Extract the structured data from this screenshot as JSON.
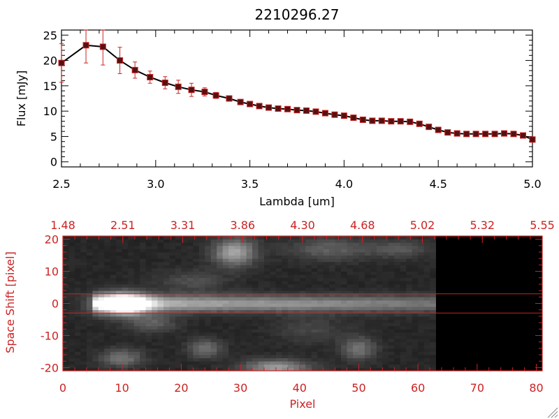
{
  "colors": {
    "axis": "#000000",
    "accent_red": "#cc2222",
    "marker_fill": "#551111",
    "image_background": "#000000"
  },
  "chart_data": [
    {
      "type": "line",
      "title": "2210296.27",
      "xlabel": "Lambda [um]",
      "ylabel": "Flux [mJy]",
      "xlim": [
        2.5,
        5.0
      ],
      "ylim": [
        -1,
        26
      ],
      "x_ticks": [
        "2.5",
        "3.0",
        "3.5",
        "4.0",
        "4.5",
        "5.0"
      ],
      "y_ticks": [
        "0",
        "5",
        "10",
        "15",
        "20",
        "25"
      ],
      "grid": false,
      "series": [
        {
          "x": [
            2.5,
            2.63,
            2.72,
            2.81,
            2.89,
            2.97,
            3.05,
            3.12,
            3.19,
            3.26,
            3.32,
            3.39,
            3.45,
            3.5,
            3.55,
            3.6,
            3.65,
            3.7,
            3.75,
            3.8,
            3.85,
            3.9,
            3.95,
            4.0,
            4.05,
            4.1,
            4.15,
            4.2,
            4.25,
            4.3,
            4.35,
            4.4,
            4.45,
            4.5,
            4.55,
            4.6,
            4.65,
            4.7,
            4.75,
            4.8,
            4.85,
            4.9,
            4.95,
            5.0
          ],
          "y": [
            19.5,
            23.0,
            22.7,
            20.0,
            18.1,
            16.7,
            15.6,
            14.8,
            14.2,
            13.8,
            13.1,
            12.5,
            11.8,
            11.4,
            11.0,
            10.7,
            10.5,
            10.4,
            10.2,
            10.1,
            9.9,
            9.6,
            9.3,
            9.1,
            8.7,
            8.3,
            8.1,
            8.1,
            8.0,
            8.0,
            7.9,
            7.5,
            6.9,
            6.3,
            5.8,
            5.6,
            5.5,
            5.5,
            5.5,
            5.5,
            5.6,
            5.5,
            5.2,
            4.4
          ],
          "yerr": [
            3.8,
            3.5,
            3.6,
            2.6,
            1.6,
            1.2,
            1.2,
            1.3,
            1.3,
            0.8,
            0.6,
            0.4,
            0.3,
            0.3,
            0.3,
            0.3,
            0.3,
            0.3,
            0.3,
            0.3,
            0.3,
            0.3,
            0.3,
            0.3,
            0.3,
            0.3,
            0.3,
            0.3,
            0.3,
            0.3,
            0.3,
            0.3,
            0.3,
            0.3,
            0.3,
            0.3,
            0.3,
            0.3,
            0.3,
            0.3,
            0.3,
            0.3,
            0.3,
            0.3
          ]
        }
      ]
    },
    {
      "type": "heatmap",
      "xlabel": "Pixel",
      "ylabel": "Space Shift [pixel]",
      "xlim": [
        0,
        81
      ],
      "ylim": [
        -21,
        21
      ],
      "x_ticks": [
        "0",
        "10",
        "20",
        "30",
        "40",
        "50",
        "60",
        "70",
        "80"
      ],
      "y_ticks": [
        "-20",
        "-10",
        "0",
        "10",
        "20"
      ],
      "top_axis_ticks": [
        "1.48",
        "2.51",
        "3.31",
        "3.86",
        "4.30",
        "4.68",
        "5.02",
        "5.32",
        "5.55"
      ],
      "extraction_window": [
        -3,
        3
      ],
      "data_extent_pixel": 63,
      "blobs": [
        {
          "x": 10,
          "y": 0,
          "sx": 3.2,
          "sy": 2.3,
          "amp": 0.9
        },
        {
          "x": 11,
          "y": 0,
          "sx": 1.8,
          "sy": 1.6,
          "amp": 0.35
        },
        {
          "x": 29,
          "y": 16,
          "sx": 2.5,
          "sy": 3.0,
          "amp": 0.5
        },
        {
          "x": 45,
          "y": 17,
          "sx": 5.0,
          "sy": 2.5,
          "amp": 0.22
        },
        {
          "x": 57,
          "y": 17,
          "sx": 3.5,
          "sy": 2.0,
          "amp": 0.18
        },
        {
          "x": 36,
          "y": -20,
          "sx": 4.0,
          "sy": 1.8,
          "amp": 0.45
        },
        {
          "x": 10,
          "y": -17,
          "sx": 2.5,
          "sy": 2.0,
          "amp": 0.3
        },
        {
          "x": 24,
          "y": -14,
          "sx": 2.0,
          "sy": 2.0,
          "amp": 0.3
        },
        {
          "x": 50,
          "y": -14,
          "sx": 2.0,
          "sy": 2.5,
          "amp": 0.3
        },
        {
          "x": 15,
          "y": -6,
          "sx": 3.0,
          "sy": 2.0,
          "amp": 0.22
        },
        {
          "x": 22,
          "y": 7,
          "sx": 4.0,
          "sy": 2.5,
          "amp": 0.15
        },
        {
          "x": 42,
          "y": -8,
          "sx": 4.0,
          "sy": 3.0,
          "amp": 0.12
        }
      ],
      "trace": {
        "y": 0,
        "sy": 1.8,
        "amp_start": 0.6,
        "amp_end": 0.3
      }
    }
  ]
}
